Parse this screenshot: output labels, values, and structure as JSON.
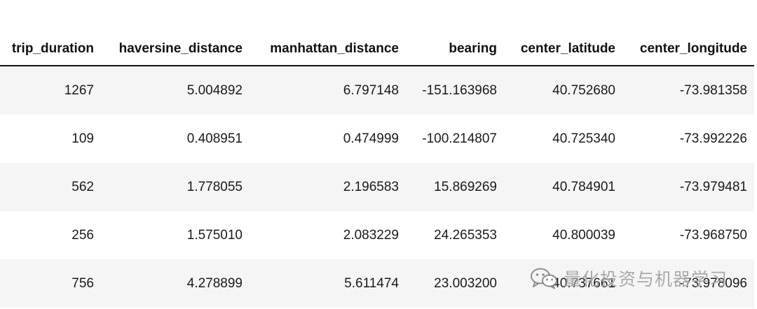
{
  "table": {
    "headers": [
      "trip_duration",
      "haversine_distance",
      "manhattan_distance",
      "bearing",
      "center_latitude",
      "center_longitude"
    ],
    "rows": [
      [
        "1267",
        "5.004892",
        "6.797148",
        "-151.163968",
        "40.752680",
        "-73.981358"
      ],
      [
        "109",
        "0.408951",
        "0.474999",
        "-100.214807",
        "40.725340",
        "-73.992226"
      ],
      [
        "562",
        "1.778055",
        "2.196583",
        "15.869269",
        "40.784901",
        "-73.979481"
      ],
      [
        "256",
        "1.575010",
        "2.083229",
        "24.265353",
        "40.800039",
        "-73.968750"
      ],
      [
        "756",
        "4.278899",
        "5.611474",
        "23.003200",
        "40.737661",
        "-73.978096"
      ]
    ]
  },
  "watermark": {
    "text": "量化投资与机器学习",
    "icon": "wechat-icon"
  }
}
